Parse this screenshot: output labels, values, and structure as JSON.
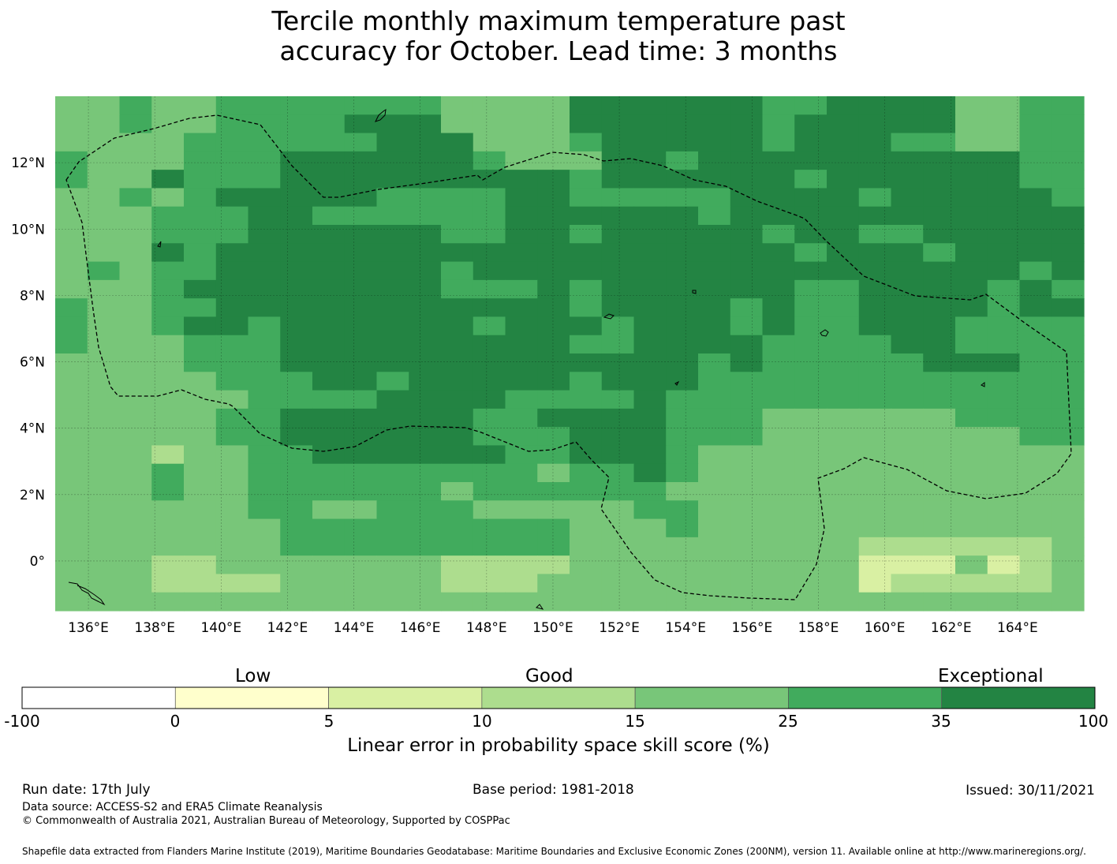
{
  "title": {
    "line1": "Tercile monthly maximum temperature past",
    "line2": "accuracy for October. Lead time: 3 months"
  },
  "map": {
    "lon_range": [
      135,
      166
    ],
    "lat_range": [
      -1.5,
      14
    ],
    "cell_size_deg": 0.833,
    "grid_on": true,
    "lon_tick_labels": [
      "136°E",
      "138°E",
      "140°E",
      "142°E",
      "144°E",
      "146°E",
      "148°E",
      "150°E",
      "152°E",
      "154°E",
      "156°E",
      "158°E",
      "160°E",
      "162°E",
      "164°E"
    ],
    "lat_tick_labels": [
      "12°N",
      "10°N",
      "8°N",
      "6°N",
      "4°N",
      "2°N",
      "0°"
    ],
    "lon_ticks": [
      136,
      138,
      140,
      142,
      144,
      146,
      148,
      150,
      152,
      154,
      156,
      158,
      160,
      162,
      164
    ],
    "lat_ticks": [
      12,
      10,
      8,
      6,
      4,
      2,
      0
    ],
    "boundary_note": "dashed EEZ outline",
    "skill_class_grid": [
      "44544555555544446666665566664455",
      "44544555566644446666665666664455",
      "44445555556664445666665666554455",
      "54445556666665444665666666666655",
      "54465556666666665666666566666655",
      "44545666665555665555566665666665",
      "44455566555555666666566666666666",
      "44455566666655665666665665566666",
      "44465666666666666666666566656666",
      "45455666666656666666666666666656",
      "44456666666655565666666556666565",
      "54455666666666665666656556666566",
      "54456656666665666566656556665555",
      "54445556666666665566665555665555",
      "44445556666666666666565555566655",
      "44444555665666665666555555555555",
      "44444455556666555565555555555555",
      "44444556666665566665554444445555",
      "44444556666665556665554444444455",
      "44434455666666556665444444444444",
      "44454455555555545565444444444444",
      "44454455555545555554444444444444",
      "44444455445554444455444444444444",
      "44444445555555554445444444444444",
      "44444445555555554444444443333334",
      "44433444444433334444444442224234",
      "44433334444433344444444442333334",
      "44444444444444444444444444444444"
    ]
  },
  "colorbar": {
    "category_labels": [
      "Low",
      "Good",
      "Exceptional"
    ],
    "tick_labels": [
      "-100",
      "0",
      "5",
      "10",
      "15",
      "25",
      "35",
      "100"
    ],
    "colors": [
      "#ffffff",
      "#ffffcc",
      "#d9f0a3",
      "#addd8e",
      "#78c679",
      "#41ab5d",
      "#238443"
    ],
    "label": "Linear error in probability space skill score (%)"
  },
  "footer": {
    "run_date": "Run date: 17th July",
    "base_period": "Base period: 1981-2018",
    "issued": "Issued: 30/11/2021",
    "data_source": "Data source: ACCESS-S2 and ERA5 Climate Reanalysis",
    "copyright": "© Commonwealth of Australia 2021, Australian Bureau of Meteorology, Supported by COSPPac",
    "shapefile": "Shapefile data extracted from Flanders Marine Institute (2019), Maritime Boundaries Geodatabase: Maritime Boundaries and Exclusive Economic Zones (200NM), version 11. Available online at http://www.marineregions.org/."
  }
}
